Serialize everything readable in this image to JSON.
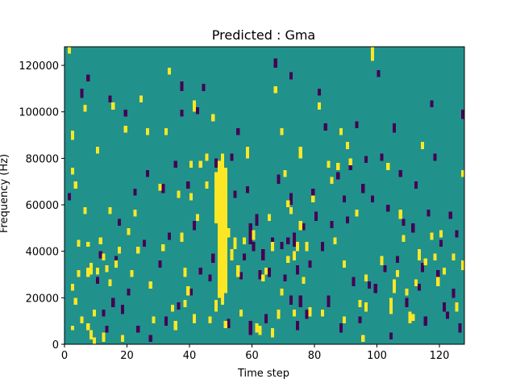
{
  "chart_data": {
    "type": "heatmap",
    "title": "Predicted : Gma",
    "xlabel": "Time step",
    "ylabel": "Frequency (Hz)",
    "xlim": [
      0,
      128
    ],
    "ylim": [
      0,
      128000
    ],
    "n_time_steps": 128,
    "n_freq_bins": 128,
    "bin_height_hz": 1000,
    "xticks": [
      0,
      20,
      40,
      60,
      80,
      100,
      120
    ],
    "xtick_labels": [
      "0",
      "20",
      "40",
      "60",
      "80",
      "100",
      "120"
    ],
    "yticks": [
      0,
      20000,
      40000,
      60000,
      80000,
      100000,
      120000
    ],
    "ytick_labels": [
      "0",
      "20000",
      "40000",
      "60000",
      "80000",
      "100000",
      "120000"
    ],
    "colormap": {
      "background": "#21918c",
      "high": "#fde725",
      "low": "#440154"
    },
    "colorbar": false,
    "grid": false,
    "legend": "none",
    "high_segments": [
      [
        1,
        125,
        128
      ],
      [
        2,
        88,
        92
      ],
      [
        2,
        73,
        76
      ],
      [
        2,
        23,
        26
      ],
      [
        2,
        6,
        8
      ],
      [
        3,
        67,
        70
      ],
      [
        3,
        17,
        20
      ],
      [
        4,
        42,
        45
      ],
      [
        4,
        29,
        32
      ],
      [
        5,
        9,
        12
      ],
      [
        6,
        100,
        103
      ],
      [
        6,
        56,
        59
      ],
      [
        7,
        42,
        44
      ],
      [
        7,
        29,
        33
      ],
      [
        7,
        6,
        9
      ],
      [
        8,
        30,
        35
      ],
      [
        8,
        2,
        6
      ],
      [
        9,
        12,
        15
      ],
      [
        9,
        0,
        3
      ],
      [
        10,
        82,
        85
      ],
      [
        10,
        30,
        33
      ],
      [
        11,
        43,
        46
      ],
      [
        12,
        36,
        39
      ],
      [
        12,
        1,
        5
      ],
      [
        13,
        31,
        34
      ],
      [
        14,
        56,
        59
      ],
      [
        14,
        25,
        28
      ],
      [
        15,
        101,
        104
      ],
      [
        16,
        33,
        36
      ],
      [
        17,
        39,
        42
      ],
      [
        18,
        1,
        4
      ],
      [
        19,
        91,
        94
      ],
      [
        20,
        47,
        50
      ],
      [
        21,
        29,
        32
      ],
      [
        22,
        55,
        58
      ],
      [
        23,
        39,
        42
      ],
      [
        24,
        104,
        107
      ],
      [
        26,
        90,
        93
      ],
      [
        27,
        24,
        27
      ],
      [
        28,
        9,
        12
      ],
      [
        30,
        66,
        69
      ],
      [
        31,
        40,
        43
      ],
      [
        32,
        90,
        93
      ],
      [
        33,
        116,
        119
      ],
      [
        34,
        14,
        17
      ],
      [
        35,
        6,
        10
      ],
      [
        36,
        63,
        66
      ],
      [
        37,
        44,
        48
      ],
      [
        38,
        29,
        33
      ],
      [
        38,
        16,
        19
      ],
      [
        39,
        21,
        25
      ],
      [
        40,
        76,
        79
      ],
      [
        40,
        62,
        65
      ],
      [
        41,
        100,
        105
      ],
      [
        41,
        9,
        13
      ],
      [
        42,
        53,
        56
      ],
      [
        43,
        76,
        79
      ],
      [
        45,
        79,
        82
      ],
      [
        45,
        67,
        70
      ],
      [
        46,
        9,
        12
      ],
      [
        47,
        96,
        99
      ],
      [
        48,
        14,
        19
      ],
      [
        48,
        52,
        74
      ],
      [
        49,
        20,
        79
      ],
      [
        50,
        17,
        82
      ],
      [
        51,
        22,
        76
      ],
      [
        51,
        7,
        10
      ],
      [
        52,
        46,
        50
      ],
      [
        53,
        36,
        41
      ],
      [
        54,
        41,
        46
      ],
      [
        55,
        29,
        34
      ],
      [
        56,
        12,
        15
      ],
      [
        57,
        43,
        46
      ],
      [
        58,
        80,
        85
      ],
      [
        60,
        45,
        49
      ],
      [
        61,
        5,
        9
      ],
      [
        62,
        4,
        8
      ],
      [
        63,
        27,
        30
      ],
      [
        64,
        30,
        33
      ],
      [
        65,
        53,
        56
      ],
      [
        66,
        40,
        44
      ],
      [
        66,
        3,
        7
      ],
      [
        67,
        108,
        111
      ],
      [
        68,
        11,
        15
      ],
      [
        69,
        90,
        93
      ],
      [
        69,
        21,
        24
      ],
      [
        70,
        72,
        75
      ],
      [
        71,
        35,
        38
      ],
      [
        71,
        59,
        62
      ],
      [
        72,
        56,
        59
      ],
      [
        73,
        36,
        40
      ],
      [
        73,
        12,
        15
      ],
      [
        74,
        40,
        44
      ],
      [
        75,
        80,
        85
      ],
      [
        75,
        49,
        53
      ],
      [
        76,
        26,
        29
      ],
      [
        77,
        40,
        44
      ],
      [
        78,
        12,
        16
      ],
      [
        79,
        61,
        64
      ],
      [
        81,
        101,
        104
      ],
      [
        82,
        12,
        15
      ],
      [
        84,
        76,
        79
      ],
      [
        85,
        69,
        72
      ],
      [
        86,
        43,
        46
      ],
      [
        87,
        75,
        78
      ],
      [
        88,
        90,
        93
      ],
      [
        89,
        9,
        12
      ],
      [
        89,
        33,
        36
      ],
      [
        90,
        84,
        87
      ],
      [
        91,
        77,
        80
      ],
      [
        93,
        55,
        58
      ],
      [
        94,
        16,
        19
      ],
      [
        95,
        1,
        4
      ],
      [
        96,
        14,
        18
      ],
      [
        96,
        27,
        30
      ],
      [
        98,
        122,
        128
      ],
      [
        101,
        34,
        38
      ],
      [
        103,
        75,
        78
      ],
      [
        104,
        13,
        20
      ],
      [
        105,
        22,
        28
      ],
      [
        106,
        29,
        32
      ],
      [
        107,
        54,
        58
      ],
      [
        108,
        44,
        47
      ],
      [
        109,
        21,
        24
      ],
      [
        110,
        9,
        14
      ],
      [
        111,
        10,
        13
      ],
      [
        112,
        25,
        28
      ],
      [
        113,
        36,
        41
      ],
      [
        114,
        84,
        87
      ],
      [
        115,
        34,
        37
      ],
      [
        117,
        45,
        48
      ],
      [
        118,
        36,
        39
      ],
      [
        119,
        25,
        29
      ],
      [
        120,
        46,
        49
      ],
      [
        121,
        30,
        33
      ],
      [
        124,
        36,
        39
      ],
      [
        125,
        14,
        18
      ],
      [
        127,
        72,
        75
      ],
      [
        127,
        32,
        36
      ]
    ],
    "low_segments": [
      [
        1,
        62,
        65
      ],
      [
        5,
        106,
        110
      ],
      [
        7,
        113,
        116
      ],
      [
        10,
        26,
        29
      ],
      [
        11,
        37,
        40
      ],
      [
        12,
        12,
        15
      ],
      [
        13,
        5,
        8
      ],
      [
        14,
        104,
        107
      ],
      [
        15,
        16,
        20
      ],
      [
        16,
        35,
        38
      ],
      [
        17,
        51,
        54
      ],
      [
        18,
        13,
        17
      ],
      [
        19,
        98,
        101
      ],
      [
        20,
        21,
        24
      ],
      [
        22,
        64,
        67
      ],
      [
        23,
        5,
        8
      ],
      [
        25,
        42,
        45
      ],
      [
        26,
        72,
        75
      ],
      [
        27,
        1,
        4
      ],
      [
        30,
        33,
        36
      ],
      [
        31,
        65,
        69
      ],
      [
        32,
        8,
        12
      ],
      [
        33,
        45,
        48
      ],
      [
        35,
        76,
        79
      ],
      [
        36,
        15,
        18
      ],
      [
        37,
        109,
        113
      ],
      [
        37,
        98,
        101
      ],
      [
        39,
        67,
        70
      ],
      [
        40,
        21,
        24
      ],
      [
        41,
        49,
        53
      ],
      [
        42,
        99,
        102
      ],
      [
        43,
        30,
        33
      ],
      [
        44,
        109,
        112
      ],
      [
        46,
        27,
        30
      ],
      [
        47,
        35,
        39
      ],
      [
        48,
        76,
        80
      ],
      [
        52,
        7,
        11
      ],
      [
        53,
        79,
        82
      ],
      [
        54,
        63,
        66
      ],
      [
        55,
        90,
        93
      ],
      [
        56,
        28,
        31
      ],
      [
        57,
        36,
        39
      ],
      [
        58,
        65,
        68
      ],
      [
        59,
        4,
        10
      ],
      [
        59,
        43,
        52
      ],
      [
        60,
        40,
        44
      ],
      [
        61,
        51,
        56
      ],
      [
        62,
        28,
        32
      ],
      [
        63,
        36,
        41
      ],
      [
        64,
        9,
        13
      ],
      [
        65,
        29,
        33
      ],
      [
        66,
        42,
        46
      ],
      [
        67,
        119,
        123
      ],
      [
        68,
        69,
        73
      ],
      [
        69,
        41,
        44
      ],
      [
        70,
        27,
        30
      ],
      [
        71,
        43,
        46
      ],
      [
        72,
        114,
        117
      ],
      [
        72,
        60,
        65
      ],
      [
        72,
        17,
        21
      ],
      [
        73,
        42,
        48
      ],
      [
        74,
        30,
        34
      ],
      [
        74,
        6,
        10
      ],
      [
        75,
        16,
        21
      ],
      [
        76,
        49,
        52
      ],
      [
        77,
        11,
        15
      ],
      [
        78,
        33,
        36
      ],
      [
        79,
        64,
        67
      ],
      [
        80,
        53,
        57
      ],
      [
        81,
        107,
        110
      ],
      [
        82,
        40,
        44
      ],
      [
        83,
        92,
        95
      ],
      [
        84,
        16,
        21
      ],
      [
        85,
        50,
        53
      ],
      [
        87,
        71,
        74
      ],
      [
        88,
        5,
        9
      ],
      [
        89,
        61,
        64
      ],
      [
        90,
        52,
        55
      ],
      [
        91,
        75,
        78
      ],
      [
        92,
        25,
        29
      ],
      [
        93,
        93,
        96
      ],
      [
        94,
        9,
        12
      ],
      [
        95,
        65,
        69
      ],
      [
        96,
        78,
        81
      ],
      [
        97,
        24,
        27
      ],
      [
        98,
        61,
        64
      ],
      [
        99,
        22,
        26
      ],
      [
        100,
        115,
        118
      ],
      [
        101,
        79,
        82
      ],
      [
        102,
        31,
        34
      ],
      [
        103,
        57,
        60
      ],
      [
        104,
        2,
        5
      ],
      [
        105,
        91,
        95
      ],
      [
        106,
        35,
        38
      ],
      [
        107,
        72,
        75
      ],
      [
        108,
        51,
        54
      ],
      [
        109,
        16,
        20
      ],
      [
        111,
        48,
        52
      ],
      [
        112,
        67,
        70
      ],
      [
        113,
        23,
        26
      ],
      [
        114,
        31,
        35
      ],
      [
        115,
        8,
        12
      ],
      [
        116,
        55,
        58
      ],
      [
        117,
        102,
        105
      ],
      [
        118,
        79,
        82
      ],
      [
        119,
        28,
        32
      ],
      [
        120,
        42,
        45
      ],
      [
        121,
        14,
        18
      ],
      [
        122,
        11,
        14
      ],
      [
        123,
        54,
        57
      ],
      [
        124,
        20,
        24
      ],
      [
        125,
        46,
        49
      ],
      [
        126,
        5,
        9
      ],
      [
        127,
        97,
        101
      ]
    ]
  }
}
